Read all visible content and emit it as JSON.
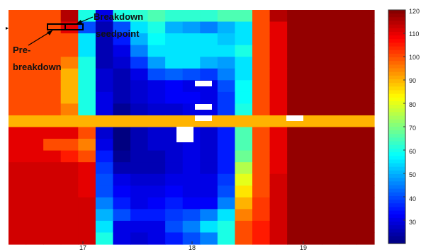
{
  "chart_data": {
    "type": "heatmap",
    "title": "",
    "xlabel": "",
    "ylabel": "",
    "x_ticks": [
      "17",
      "18",
      "19"
    ],
    "colorbar": {
      "ticks": [
        "120",
        "110",
        "100",
        "90",
        "80",
        "70",
        "60",
        "50",
        "40",
        "30"
      ],
      "range": [
        20,
        120
      ],
      "colormap": "jet"
    },
    "columns": 21,
    "rows": 20,
    "grid_values": [
      [
        100,
        100,
        100,
        115,
        60,
        30,
        60,
        62,
        65,
        62,
        62,
        62,
        65,
        65,
        100,
        115,
        118,
        118,
        118,
        118,
        118
      ],
      [
        100,
        100,
        100,
        110,
        40,
        25,
        40,
        55,
        60,
        50,
        48,
        45,
        50,
        55,
        100,
        110,
        118,
        118,
        118,
        118,
        118
      ],
      [
        100,
        100,
        100,
        100,
        55,
        25,
        35,
        50,
        58,
        55,
        55,
        55,
        52,
        55,
        100,
        110,
        118,
        118,
        118,
        118,
        118
      ],
      [
        100,
        100,
        100,
        100,
        55,
        25,
        30,
        45,
        55,
        55,
        55,
        55,
        55,
        60,
        100,
        110,
        118,
        118,
        118,
        118,
        118
      ],
      [
        100,
        100,
        100,
        95,
        60,
        25,
        28,
        38,
        48,
        55,
        55,
        50,
        48,
        55,
        100,
        110,
        118,
        118,
        118,
        118,
        118
      ],
      [
        100,
        100,
        100,
        90,
        60,
        28,
        25,
        30,
        40,
        42,
        40,
        38,
        45,
        55,
        100,
        110,
        118,
        118,
        118,
        118,
        118
      ],
      [
        100,
        100,
        100,
        90,
        60,
        28,
        25,
        28,
        30,
        32,
        30,
        30,
        40,
        58,
        100,
        110,
        118,
        118,
        118,
        118,
        118
      ],
      [
        100,
        100,
        100,
        90,
        60,
        30,
        25,
        28,
        30,
        32,
        32,
        30,
        38,
        58,
        100,
        110,
        118,
        118,
        118,
        118,
        118
      ],
      [
        100,
        100,
        100,
        95,
        60,
        30,
        22,
        26,
        28,
        28,
        30,
        30,
        38,
        60,
        100,
        110,
        118,
        118,
        118,
        118,
        118
      ],
      [
        90,
        90,
        90,
        90,
        90,
        90,
        90,
        90,
        90,
        90,
        90,
        90,
        90,
        90,
        90,
        90,
        90,
        90,
        90,
        90,
        90
      ],
      [
        110,
        110,
        110,
        110,
        100,
        28,
        20,
        25,
        28,
        28,
        30,
        28,
        35,
        65,
        100,
        110,
        118,
        118,
        118,
        118,
        118
      ],
      [
        110,
        110,
        100,
        100,
        95,
        30,
        20,
        25,
        28,
        28,
        30,
        28,
        35,
        65,
        100,
        110,
        118,
        118,
        118,
        118,
        118
      ],
      [
        110,
        110,
        110,
        105,
        100,
        35,
        22,
        25,
        25,
        28,
        30,
        28,
        35,
        68,
        100,
        110,
        118,
        118,
        118,
        118,
        118
      ],
      [
        112,
        112,
        112,
        112,
        110,
        38,
        25,
        25,
        25,
        28,
        30,
        28,
        35,
        75,
        100,
        110,
        118,
        118,
        118,
        118,
        118
      ],
      [
        112,
        112,
        112,
        112,
        110,
        40,
        30,
        28,
        28,
        30,
        30,
        30,
        38,
        80,
        100,
        112,
        118,
        118,
        118,
        118,
        118
      ],
      [
        112,
        112,
        112,
        112,
        110,
        40,
        32,
        30,
        30,
        32,
        30,
        30,
        40,
        85,
        100,
        112,
        118,
        118,
        118,
        118,
        118
      ],
      [
        112,
        112,
        112,
        112,
        112,
        45,
        35,
        30,
        32,
        35,
        32,
        32,
        45,
        90,
        102,
        112,
        118,
        118,
        118,
        118,
        118
      ],
      [
        112,
        112,
        112,
        112,
        112,
        50,
        40,
        35,
        35,
        38,
        40,
        45,
        55,
        95,
        102,
        112,
        118,
        118,
        118,
        118,
        118
      ],
      [
        112,
        112,
        112,
        112,
        112,
        55,
        30,
        30,
        30,
        40,
        45,
        55,
        60,
        100,
        105,
        112,
        118,
        118,
        118,
        118,
        118
      ],
      [
        112,
        112,
        112,
        112,
        112,
        60,
        30,
        28,
        30,
        35,
        40,
        45,
        60,
        100,
        105,
        112,
        118,
        118,
        118,
        118,
        118
      ]
    ],
    "annotations": [
      "Breakdown",
      "seedpoint",
      "Pre-",
      "breakdown"
    ]
  }
}
